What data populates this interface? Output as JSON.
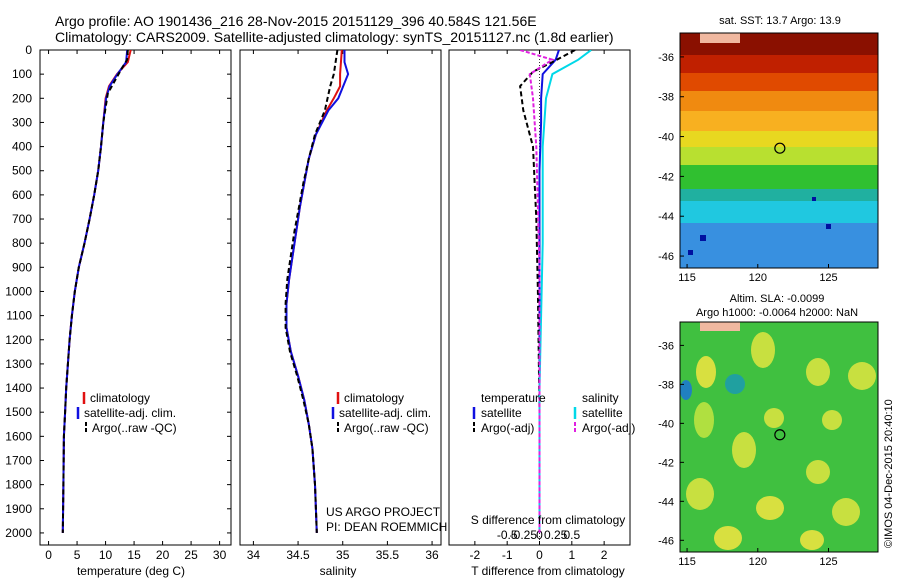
{
  "header": {
    "line1": "Argo profile: AO 1901436_216 28-Nov-2015 20151129_396 40.584S 121.56E",
    "line2": "Climatology: CARS2009. Satellite-adjusted climatology: synTS_20151127.nc (1.8d earlier)"
  },
  "colors": {
    "climatology": "#e01010",
    "satellite": "#1010e0",
    "argo": "#000000",
    "satellite_s": "#00d8e8",
    "argo_s": "#e020e0"
  },
  "depth_axis": {
    "ticks": [
      "0",
      "100",
      "200",
      "300",
      "400",
      "500",
      "600",
      "700",
      "800",
      "900",
      "1000",
      "1100",
      "1200",
      "1300",
      "1400",
      "1500",
      "1600",
      "1700",
      "1800",
      "1900",
      "2000"
    ],
    "values": [
      0,
      100,
      200,
      300,
      400,
      500,
      600,
      700,
      800,
      900,
      1000,
      1100,
      1200,
      1300,
      1400,
      1500,
      1600,
      1700,
      1800,
      1900,
      2000
    ],
    "range": [
      0,
      2050
    ]
  },
  "panels": {
    "temperature": {
      "xlabel": "temperature (deg C)",
      "ticks": [
        "0",
        "5",
        "10",
        "15",
        "20",
        "25",
        "30"
      ],
      "tick_values": [
        0,
        5,
        10,
        15,
        20,
        25,
        30
      ],
      "xlim": [
        -1.5,
        32
      ],
      "legend": [
        "climatology",
        "satellite-adj. clim.",
        "Argo(..raw -QC)"
      ]
    },
    "salinity": {
      "xlabel": "salinity",
      "ticks": [
        "34",
        "34.5",
        "35",
        "35.5",
        "36"
      ],
      "tick_values": [
        34,
        34.5,
        35,
        35.5,
        36
      ],
      "xlim": [
        33.85,
        36.1
      ],
      "legend": [
        "climatology",
        "satellite-adj. clim.",
        "Argo(..raw -QC)"
      ],
      "note1": "US ARGO PROJECT",
      "note2": "PI: DEAN ROEMMICH"
    },
    "difference": {
      "xlabel": "T difference from climatology",
      "top_label": "S difference from climatology",
      "t_ticks": [
        "-2",
        "-1",
        "0",
        "1",
        "2"
      ],
      "t_tick_values": [
        -2,
        -1,
        0,
        1,
        2
      ],
      "s_ticks": [
        "-0.5",
        "-0.25",
        "0",
        "0.25",
        "0.5"
      ],
      "s_tick_values": [
        -0.5,
        -0.25,
        0,
        0.25,
        0.5
      ],
      "xlim": [
        -2.8,
        2.8
      ],
      "legend_t_title": "temperature",
      "legend_s_title": "salinity",
      "legend_t": [
        "satellite",
        "Argo(-adj)"
      ],
      "legend_s": [
        "satellite",
        "Argo(-adj)"
      ]
    }
  },
  "maps": {
    "sst": {
      "title": "sat. SST: 13.7 Argo: 13.9",
      "lat_ticks": [
        "-36",
        "-38",
        "-40",
        "-42",
        "-44",
        "-46"
      ],
      "lat_values": [
        -36,
        -38,
        -40,
        -42,
        -44,
        -46
      ],
      "lon_ticks": [
        "115",
        "120",
        "125"
      ],
      "lon_values": [
        115,
        120,
        125
      ]
    },
    "sla": {
      "title1": "Altim. SLA: -0.0099",
      "title2": "Argo h1000: -0.0064 h2000: NaN",
      "lat_ticks": [
        "-36",
        "-38",
        "-40",
        "-42",
        "-44",
        "-46"
      ],
      "lat_values": [
        -36,
        -38,
        -40,
        -42,
        -44,
        -46
      ],
      "lon_ticks": [
        "115",
        "120",
        "125"
      ],
      "lon_values": [
        115,
        120,
        125
      ]
    },
    "lon_range": [
      114.5,
      128.5
    ],
    "lat_range": [
      -46.6,
      -34.8
    ],
    "float_position": {
      "lat": -40.584,
      "lon": 121.56
    }
  },
  "stamp": "©IMOS 04-Dec-2015 20:40:10",
  "chart_data": [
    {
      "type": "line",
      "title": "temperature",
      "xlabel": "temperature (deg C)",
      "ylabel": "depth",
      "ylim": [
        2050,
        0
      ],
      "series": [
        {
          "name": "climatology",
          "x": [
            14.4,
            13.9,
            12.0,
            10.6,
            10.0,
            9.6,
            9.2,
            8.7,
            8.0,
            7.2,
            6.3,
            5.3,
            4.6,
            4.1,
            3.7,
            3.4,
            3.1,
            2.9,
            2.7,
            2.6,
            2.5
          ],
          "y": [
            0,
            50,
            100,
            150,
            200,
            300,
            400,
            500,
            600,
            700,
            800,
            900,
            1000,
            1100,
            1200,
            1300,
            1400,
            1500,
            1600,
            1800,
            2000
          ]
        },
        {
          "name": "satellite-adj. clim.",
          "x": [
            13.8,
            13.6,
            12.1,
            10.7,
            10.1,
            9.6,
            9.2,
            8.7,
            8.0,
            7.2,
            6.3,
            5.3,
            4.6,
            4.1,
            3.7,
            3.4,
            3.1,
            2.9,
            2.7,
            2.6,
            2.5
          ],
          "y": [
            0,
            50,
            100,
            150,
            200,
            300,
            400,
            500,
            600,
            700,
            800,
            900,
            1000,
            1100,
            1200,
            1300,
            1400,
            1500,
            1600,
            1800,
            2000
          ]
        },
        {
          "name": "Argo(..raw -QC)",
          "x": [
            13.9,
            13.8,
            13.0,
            11.8,
            10.4,
            9.6,
            9.2,
            8.7,
            8.0,
            7.2,
            6.3,
            5.3,
            4.6,
            4.1,
            3.7,
            3.4,
            3.1,
            2.9,
            2.7,
            2.6,
            2.5
          ],
          "y": [
            0,
            40,
            70,
            120,
            180,
            300,
            400,
            500,
            600,
            700,
            800,
            900,
            1000,
            1100,
            1200,
            1300,
            1400,
            1500,
            1600,
            1800,
            2000
          ]
        }
      ]
    },
    {
      "type": "line",
      "title": "salinity",
      "xlabel": "salinity",
      "ylabel": "depth",
      "ylim": [
        2050,
        0
      ],
      "series": [
        {
          "name": "climatology",
          "x": [
            34.99,
            34.97,
            34.97,
            34.9,
            34.82,
            34.7,
            34.62,
            34.57,
            34.52,
            34.48,
            34.44,
            34.4,
            34.37,
            34.37,
            34.42,
            34.5,
            34.57,
            34.62,
            34.66,
            34.69,
            34.71
          ],
          "y": [
            0,
            100,
            150,
            200,
            250,
            350,
            450,
            550,
            650,
            750,
            850,
            950,
            1050,
            1150,
            1250,
            1350,
            1450,
            1550,
            1650,
            1800,
            2000
          ]
        },
        {
          "name": "satellite-adj. clim.",
          "x": [
            35.02,
            35.02,
            35.06,
            34.95,
            34.84,
            34.7,
            34.62,
            34.57,
            34.52,
            34.48,
            34.44,
            34.4,
            34.37,
            34.37,
            34.42,
            34.5,
            34.57,
            34.62,
            34.66,
            34.69,
            34.71
          ],
          "y": [
            0,
            50,
            100,
            200,
            250,
            350,
            450,
            550,
            650,
            750,
            850,
            950,
            1050,
            1150,
            1250,
            1350,
            1450,
            1550,
            1650,
            1800,
            2000
          ]
        },
        {
          "name": "Argo(..raw -QC)",
          "x": [
            34.94,
            34.92,
            34.9,
            34.86,
            34.8,
            34.69,
            34.62,
            34.56,
            34.51,
            34.46,
            34.42,
            34.38,
            34.36,
            34.36,
            34.41,
            34.49,
            34.56,
            34.62,
            34.66,
            34.69,
            34.71
          ],
          "y": [
            0,
            50,
            100,
            150,
            250,
            350,
            450,
            550,
            650,
            750,
            850,
            950,
            1050,
            1150,
            1250,
            1350,
            1450,
            1550,
            1650,
            1800,
            2000
          ]
        }
      ]
    },
    {
      "type": "line",
      "title": "difference from climatology",
      "xlabel": "T difference from climatology",
      "ylabel": "depth",
      "ylim": [
        2050,
        0
      ],
      "series": [
        {
          "name": "temperature satellite",
          "x": [
            0.6,
            0.5,
            0.1,
            0.05,
            0.05,
            0.0,
            0.0,
            0.0,
            0.0
          ],
          "y": [
            0,
            40,
            100,
            200,
            300,
            500,
            900,
            1500,
            2000
          ]
        },
        {
          "name": "temperature Argo(-adj)",
          "x": [
            1.1,
            0.4,
            -0.2,
            -0.6,
            -0.5,
            -0.2,
            -0.1,
            -0.05,
            0.0,
            0.0
          ],
          "y": [
            0,
            50,
            90,
            150,
            250,
            400,
            700,
            1000,
            1500,
            2000
          ]
        },
        {
          "name": "salinity satellite",
          "x": [
            0.8,
            0.6,
            0.2,
            0.1,
            0.05,
            0.05,
            0.0,
            0.0
          ],
          "y": [
            0,
            40,
            100,
            200,
            400,
            800,
            1400,
            2000
          ]
        },
        {
          "name": "salinity Argo(-adj)",
          "x": [
            -0.3,
            0.2,
            -0.15,
            -0.1,
            -0.05,
            0.0,
            0.0
          ],
          "y": [
            0,
            40,
            100,
            200,
            400,
            900,
            2000
          ]
        }
      ]
    }
  ]
}
